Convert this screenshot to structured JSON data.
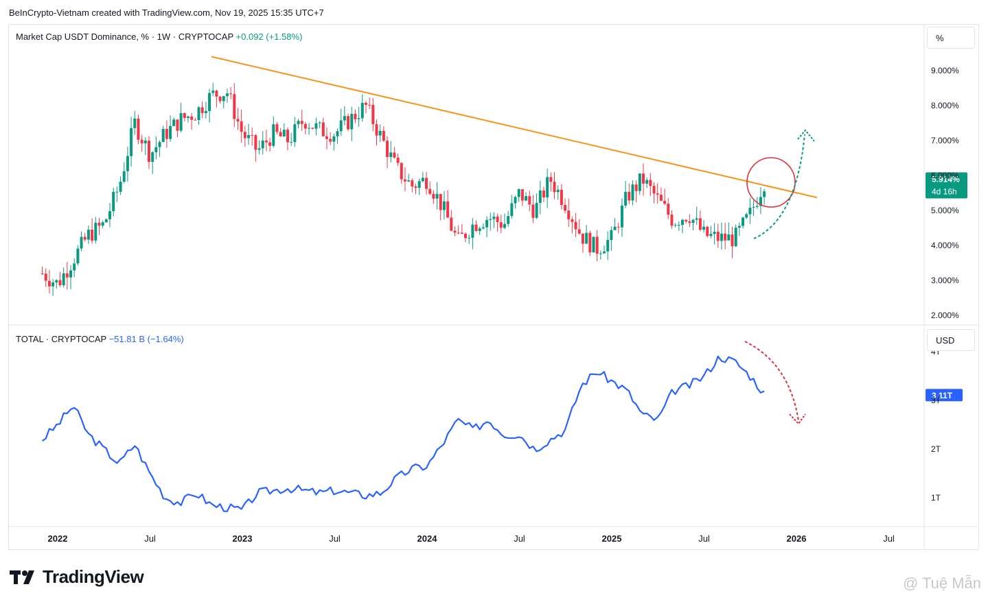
{
  "header": {
    "text": "BeInCrypto-Vietnam created with TradingView.com, Nov 19, 2025 15:35 UTC+7"
  },
  "colors": {
    "up": "#089981",
    "down": "#f23645",
    "total_line": "#2962ff",
    "trend": "#f7931a",
    "circle": "#e0303a",
    "green_arrow": "#089981",
    "red_arrow": "#e0303a"
  },
  "top_pane": {
    "legend_name": "Market Cap USDT Dominance, % · 1W · CRYPTOCAP",
    "legend_change": "+0.092 (+1.58%)",
    "unit": "%",
    "last_label": "5.914%",
    "countdown": "4d 16h"
  },
  "bottom_pane": {
    "legend_name": "TOTAL · CRYPTOCAP",
    "legend_change": "−51.81 B (−1.64%)",
    "unit": "USD",
    "last_label": "3.11T"
  },
  "x_axis": [
    "2022",
    "Jul",
    "2023",
    "Jul",
    "2024",
    "Jul",
    "2025",
    "Jul",
    "2026",
    "Jul"
  ],
  "footer": {
    "logo_text": "TradingView",
    "watermark": "@ Tuệ Mẫn"
  },
  "chart_data": [
    {
      "type": "candlestick",
      "title": "Market Cap USDT Dominance, % · 1W · CRYPTOCAP",
      "y_ticks": [
        "9.000%",
        "8.000%",
        "7.000%",
        "6.000%",
        "5.000%",
        "4.000%",
        "3.000%",
        "2.000%"
      ],
      "ylim": [
        2.0,
        9.0
      ],
      "x": [
        "2021-12",
        "2022-01",
        "2022-02",
        "2022-03",
        "2022-04",
        "2022-05",
        "2022-06",
        "2022-07",
        "2022-08",
        "2022-09",
        "2022-10",
        "2022-11",
        "2022-12",
        "2023-01",
        "2023-02",
        "2023-03",
        "2023-04",
        "2023-05",
        "2023-06",
        "2023-07",
        "2023-08",
        "2023-09",
        "2023-10",
        "2023-11",
        "2023-12",
        "2024-01",
        "2024-02",
        "2024-03",
        "2024-04",
        "2024-05",
        "2024-06",
        "2024-07",
        "2024-08",
        "2024-09",
        "2024-10",
        "2024-11",
        "2024-12",
        "2025-01",
        "2025-02",
        "2025-03",
        "2025-04",
        "2025-05",
        "2025-06",
        "2025-07",
        "2025-08",
        "2025-09",
        "2025-10",
        "2025-11"
      ],
      "values": [
        3.2,
        2.9,
        3.6,
        4.3,
        4.6,
        5.7,
        7.5,
        6.6,
        7.2,
        7.6,
        7.8,
        8.3,
        8.4,
        7.2,
        6.7,
        7.2,
        7.0,
        7.6,
        7.3,
        7.2,
        7.6,
        8.0,
        7.1,
        6.2,
        5.7,
        5.9,
        5.1,
        4.1,
        4.6,
        4.8,
        4.6,
        5.5,
        5.0,
        5.9,
        5.2,
        4.3,
        3.9,
        4.2,
        5.4,
        5.9,
        5.3,
        4.7,
        4.9,
        4.3,
        4.2,
        4.2,
        4.9,
        5.914
      ],
      "annotations": [
        "descending trendline",
        "breakout circle",
        "projected rise arrow"
      ]
    },
    {
      "type": "line",
      "title": "TOTAL · CRYPTOCAP",
      "y_ticks": [
        "1T",
        "2T",
        "3T",
        "4T"
      ],
      "ylim": [
        0.5,
        4.0
      ],
      "x": [
        "2021-12",
        "2022-01",
        "2022-02",
        "2022-03",
        "2022-04",
        "2022-05",
        "2022-06",
        "2022-07",
        "2022-08",
        "2022-09",
        "2022-10",
        "2022-11",
        "2022-12",
        "2023-01",
        "2023-02",
        "2023-03",
        "2023-04",
        "2023-05",
        "2023-06",
        "2023-07",
        "2023-08",
        "2023-09",
        "2023-10",
        "2023-11",
        "2023-12",
        "2024-01",
        "2024-02",
        "2024-03",
        "2024-04",
        "2024-05",
        "2024-06",
        "2024-07",
        "2024-08",
        "2024-09",
        "2024-10",
        "2024-11",
        "2024-12",
        "2025-01",
        "2025-02",
        "2025-03",
        "2025-04",
        "2025-05",
        "2025-06",
        "2025-07",
        "2025-08",
        "2025-09",
        "2025-10",
        "2025-11"
      ],
      "values": [
        2.2,
        2.5,
        2.9,
        2.3,
        2.0,
        1.7,
        2.1,
        1.5,
        1.0,
        0.9,
        1.1,
        0.85,
        0.8,
        0.75,
        1.1,
        1.15,
        1.2,
        1.15,
        1.1,
        1.15,
        1.1,
        1.05,
        1.1,
        1.4,
        1.6,
        1.65,
        2.1,
        2.6,
        2.4,
        2.6,
        2.3,
        2.3,
        2.0,
        2.2,
        2.4,
        3.3,
        3.6,
        3.4,
        3.2,
        2.7,
        2.6,
        3.2,
        3.3,
        3.5,
        3.9,
        3.8,
        3.5,
        3.11
      ],
      "annotations": [
        "projected decline arrow"
      ]
    }
  ]
}
